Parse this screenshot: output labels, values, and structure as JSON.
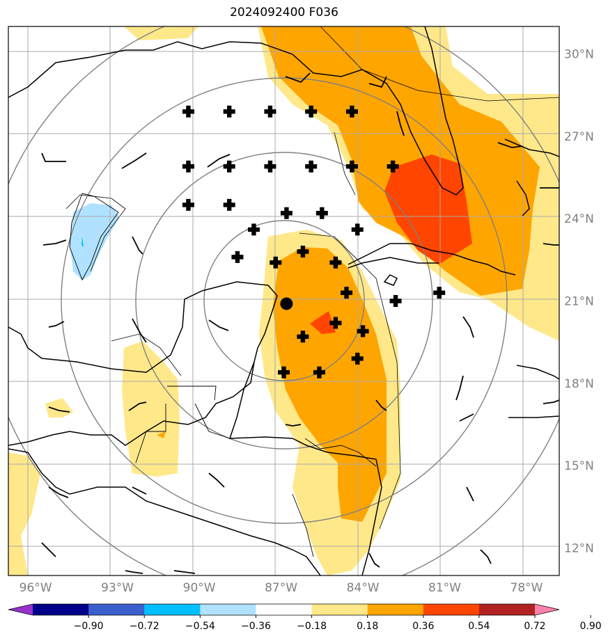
{
  "title": "2024092400 F036",
  "chart_data": {
    "type": "heatmap",
    "title": "2024092400 F036",
    "map_extent": {
      "lon": [
        -97,
        -76.8
      ],
      "lat": [
        11,
        31
      ]
    },
    "lat_ticks": [
      {
        "value": 30,
        "label": "30°N"
      },
      {
        "value": 27,
        "label": "27°N"
      },
      {
        "value": 24,
        "label": "24°N"
      },
      {
        "value": 21,
        "label": "21°N"
      },
      {
        "value": 18,
        "label": "18°N"
      },
      {
        "value": 15,
        "label": "15°N"
      },
      {
        "value": 12,
        "label": "12°N"
      }
    ],
    "lon_ticks": [
      {
        "value": -96,
        "label": "96°W"
      },
      {
        "value": -93,
        "label": "93°W"
      },
      {
        "value": -90,
        "label": "90°W"
      },
      {
        "value": -87,
        "label": "87°W"
      },
      {
        "value": -84,
        "label": "84°W"
      },
      {
        "value": -81,
        "label": "81°W"
      },
      {
        "value": -78,
        "label": "78°W"
      }
    ],
    "colorbar": {
      "ticks": [
        "−0.90",
        "−0.72",
        "−0.54",
        "−0.36",
        "−0.18",
        "0.18",
        "0.36",
        "0.54",
        "0.72",
        "0.90"
      ],
      "colors": [
        "#9932cc",
        "#00008b",
        "#3a5fcd",
        "#00bfff",
        "#b0e2ff",
        "#ffffff",
        "#ffe88a",
        "#ffa500",
        "#ff4500",
        "#b22222",
        "#ff82ab"
      ]
    },
    "center_marker": {
      "lon": -86.8,
      "lat": 20.9
    },
    "plus_markers": [
      {
        "lon": -90.4,
        "lat": 27.9
      },
      {
        "lon": -88.9,
        "lat": 27.9
      },
      {
        "lon": -87.4,
        "lat": 27.9
      },
      {
        "lon": -85.9,
        "lat": 27.9
      },
      {
        "lon": -84.4,
        "lat": 27.9
      },
      {
        "lon": -90.4,
        "lat": 25.9
      },
      {
        "lon": -88.9,
        "lat": 25.9
      },
      {
        "lon": -87.4,
        "lat": 25.9
      },
      {
        "lon": -85.9,
        "lat": 25.9
      },
      {
        "lon": -84.4,
        "lat": 25.9
      },
      {
        "lon": -82.9,
        "lat": 25.9
      },
      {
        "lon": -90.4,
        "lat": 24.5
      },
      {
        "lon": -88.9,
        "lat": 24.5
      },
      {
        "lon": -86.8,
        "lat": 24.2
      },
      {
        "lon": -85.5,
        "lat": 24.2
      },
      {
        "lon": -88.0,
        "lat": 23.6
      },
      {
        "lon": -84.2,
        "lat": 23.6
      },
      {
        "lon": -87.2,
        "lat": 22.4
      },
      {
        "lon": -88.6,
        "lat": 22.6
      },
      {
        "lon": -86.2,
        "lat": 22.8
      },
      {
        "lon": -85.0,
        "lat": 22.4
      },
      {
        "lon": -84.6,
        "lat": 21.3
      },
      {
        "lon": -82.8,
        "lat": 21.0
      },
      {
        "lon": -81.2,
        "lat": 21.3
      },
      {
        "lon": -85.0,
        "lat": 20.2
      },
      {
        "lon": -84.0,
        "lat": 19.9
      },
      {
        "lon": -86.2,
        "lat": 19.7
      },
      {
        "lon": -84.2,
        "lat": 18.9
      },
      {
        "lon": -86.9,
        "lat": 18.4
      },
      {
        "lon": -85.6,
        "lat": 18.4
      }
    ]
  }
}
